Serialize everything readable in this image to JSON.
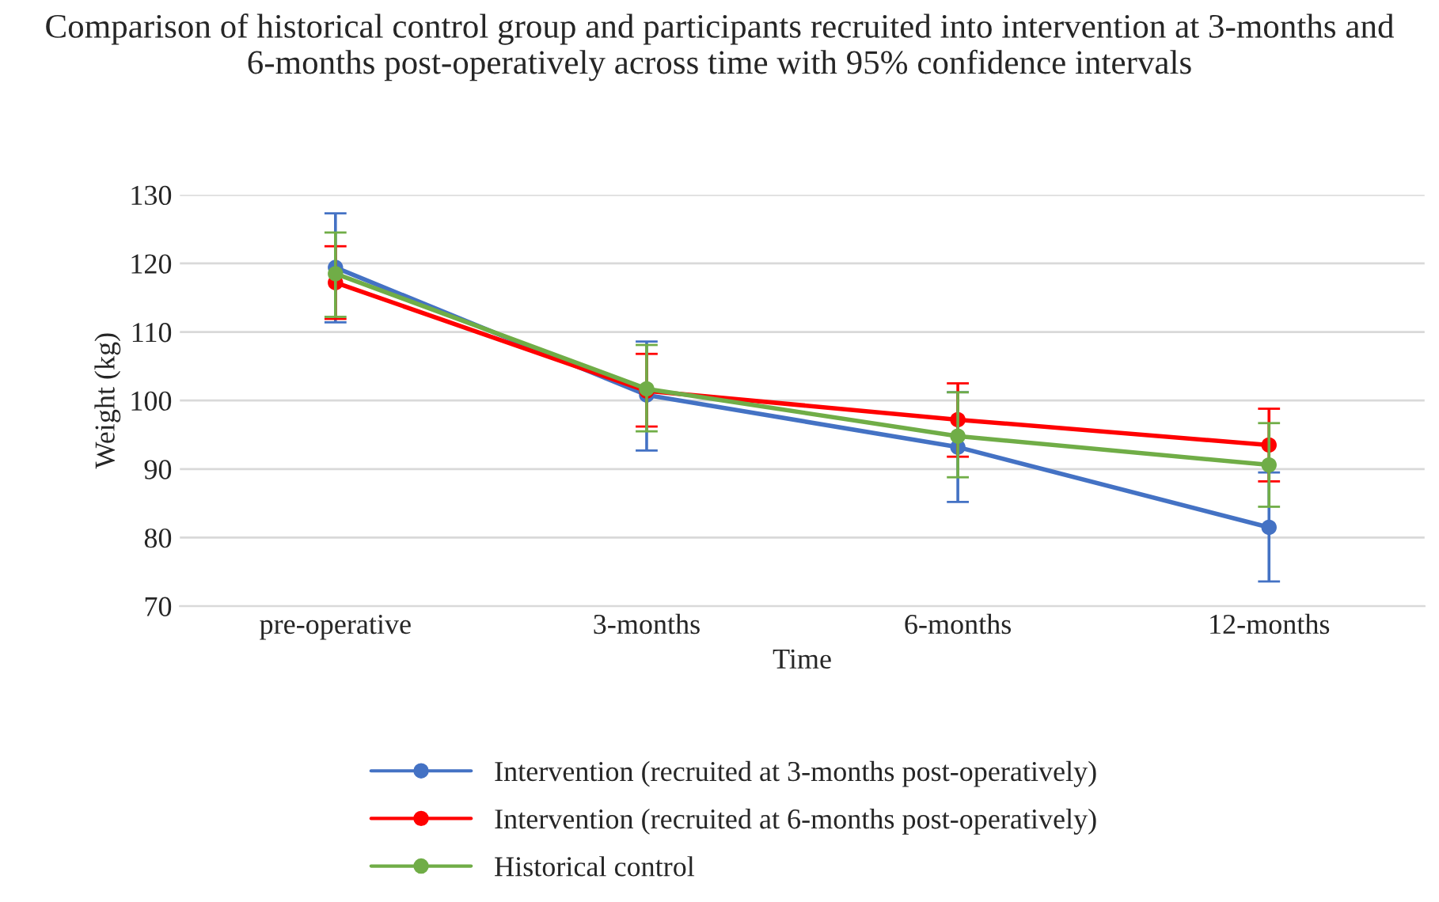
{
  "chart_data": {
    "type": "line",
    "title": "Comparison of historical control group and participants recruited into intervention at 3-months and 6-months post-operatively across time with 95% confidence intervals",
    "xlabel": "Time",
    "ylabel": "Weight (kg)",
    "categories": [
      "pre-operative",
      "3-months",
      "6-months",
      "12-months"
    ],
    "series": [
      {
        "name": "Intervention (recruited at 3-months post-operatively)",
        "color": "#4472c4",
        "values": [
          119.4,
          100.8,
          93.2,
          81.5
        ],
        "errors": [
          [
            111.4,
            127.3
          ],
          [
            92.7,
            108.6
          ],
          [
            85.2,
            101.2
          ],
          [
            73.6,
            89.5
          ]
        ]
      },
      {
        "name": "Intervention (recruited at 6-months post-operatively)",
        "color": "#ff0000",
        "values": [
          117.2,
          101.4,
          97.2,
          93.5
        ],
        "errors": [
          [
            111.9,
            122.5
          ],
          [
            96.2,
            106.8
          ],
          [
            91.8,
            102.5
          ],
          [
            88.2,
            98.8
          ]
        ]
      },
      {
        "name": "Historical control",
        "color": "#70ad47",
        "values": [
          118.5,
          101.7,
          94.8,
          90.6
        ],
        "errors": [
          [
            112.2,
            124.5
          ],
          [
            95.5,
            108.1
          ],
          [
            88.8,
            101.2
          ],
          [
            84.5,
            96.7
          ]
        ]
      }
    ],
    "ylim": [
      70,
      130
    ],
    "yticks": [
      70,
      80,
      90,
      100,
      110,
      120,
      130
    ],
    "grid": "y",
    "legend": "bottom",
    "marker": "circle",
    "line_style": "solid"
  }
}
